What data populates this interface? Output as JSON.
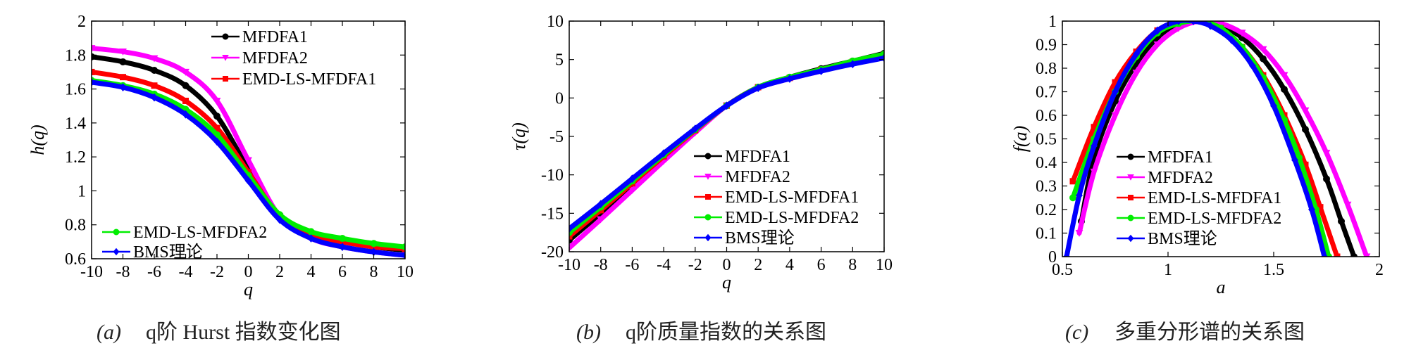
{
  "chart_data": [
    {
      "type": "line",
      "panel": "a",
      "xlabel": "q",
      "ylabel": "h(q)",
      "xlim": [
        -10,
        10
      ],
      "ylim": [
        0.6,
        2
      ],
      "xticks": [
        -10,
        -8,
        -6,
        -4,
        -2,
        0,
        2,
        4,
        6,
        8,
        10
      ],
      "xtick_labels": [
        "-10",
        "-8",
        "-6",
        "-4",
        "-2",
        "0",
        "2",
        "4",
        "6",
        "8",
        "10"
      ],
      "yticks": [
        0.6,
        0.8,
        1,
        1.2,
        1.4,
        1.6,
        1.8,
        2
      ],
      "ytick_labels": [
        "0.6",
        "0.8",
        "1",
        "1.2",
        "1.4",
        "1.6",
        "1.8",
        "2"
      ],
      "x": [
        -10,
        -8,
        -6,
        -4,
        -2,
        0,
        2,
        4,
        6,
        8,
        10
      ],
      "series": [
        {
          "name": "MFDFA1",
          "color": "#000000",
          "marker": "circle",
          "values": [
            1.79,
            1.76,
            1.71,
            1.62,
            1.44,
            1.13,
            0.85,
            0.74,
            0.7,
            0.67,
            0.65
          ]
        },
        {
          "name": "MFDFA2",
          "color": "#ff00ff",
          "marker": "triangle-down",
          "values": [
            1.84,
            1.82,
            1.78,
            1.7,
            1.53,
            1.18,
            0.85,
            0.72,
            0.67,
            0.64,
            0.62
          ]
        },
        {
          "name": "EMD-LS-MFDFA1",
          "color": "#ff0000",
          "marker": "square",
          "values": [
            1.7,
            1.67,
            1.62,
            1.53,
            1.37,
            1.11,
            0.85,
            0.74,
            0.7,
            0.67,
            0.66
          ]
        },
        {
          "name": "EMD-LS-MFDFA2",
          "color": "#00ee00",
          "marker": "circle",
          "values": [
            1.65,
            1.62,
            1.57,
            1.48,
            1.33,
            1.09,
            0.86,
            0.76,
            0.72,
            0.69,
            0.67
          ]
        },
        {
          "name": "BMS理论",
          "color": "#0000ff",
          "marker": "diamond",
          "values": [
            1.64,
            1.61,
            1.55,
            1.45,
            1.29,
            1.06,
            0.83,
            0.72,
            0.67,
            0.64,
            0.62
          ]
        }
      ],
      "legend_upper": [
        "MFDFA1",
        "MFDFA2",
        "EMD-LS-MFDFA1"
      ],
      "legend_lower": [
        "EMD-LS-MFDFA2",
        "BMS理论"
      ],
      "caption_tag": "(a)",
      "caption": "q阶 Hurst 指数变化图"
    },
    {
      "type": "line",
      "panel": "b",
      "xlabel": "q",
      "ylabel": "τ(q)",
      "xlim": [
        -10,
        10
      ],
      "ylim": [
        -20,
        10
      ],
      "xticks": [
        -10,
        -8,
        -6,
        -4,
        -2,
        0,
        2,
        4,
        6,
        8,
        10
      ],
      "xtick_labels": [
        "-10",
        "-8",
        "-6",
        "-4",
        "-2",
        "0",
        "2",
        "4",
        "6",
        "8",
        "10"
      ],
      "yticks": [
        -20,
        -15,
        -10,
        -5,
        0,
        5,
        10
      ],
      "ytick_labels": [
        "-20",
        "-15",
        "-10",
        "-5",
        "0",
        "5",
        "10"
      ],
      "x": [
        -10,
        -8,
        -6,
        -4,
        -2,
        0,
        2,
        4,
        6,
        8,
        10
      ],
      "series": [
        {
          "name": "MFDFA1",
          "color": "#000000",
          "marker": "circle",
          "values": [
            -18.5,
            -15.0,
            -11.4,
            -7.8,
            -4.3,
            -1.0,
            1.4,
            2.7,
            3.8,
            4.8,
            5.8
          ]
        },
        {
          "name": "MFDFA2",
          "color": "#ff00ff",
          "marker": "triangle-down",
          "values": [
            -19.5,
            -15.8,
            -12.0,
            -8.2,
            -4.5,
            -1.0,
            1.3,
            2.5,
            3.5,
            4.5,
            5.3
          ]
        },
        {
          "name": "EMD-LS-MFDFA1",
          "color": "#ff0000",
          "marker": "square",
          "values": [
            -18.0,
            -14.6,
            -11.1,
            -7.6,
            -4.2,
            -1.0,
            1.4,
            2.6,
            3.7,
            4.7,
            5.6
          ]
        },
        {
          "name": "EMD-LS-MFDFA2",
          "color": "#00ee00",
          "marker": "circle",
          "values": [
            -17.5,
            -14.2,
            -10.8,
            -7.4,
            -4.1,
            -1.0,
            1.4,
            2.7,
            3.7,
            4.8,
            5.7
          ]
        },
        {
          "name": "BMS理论",
          "color": "#0000ff",
          "marker": "diamond",
          "values": [
            -17.0,
            -13.8,
            -10.5,
            -7.2,
            -4.0,
            -1.0,
            1.3,
            2.5,
            3.5,
            4.4,
            5.2
          ]
        }
      ],
      "legend": [
        "MFDFA1",
        "MFDFA2",
        "EMD-LS-MFDFA1",
        "EMD-LS-MFDFA2",
        "BMS理论"
      ],
      "caption_tag": "(b)",
      "caption": "q阶质量指数的关系图"
    },
    {
      "type": "line",
      "panel": "c",
      "xlabel": "a",
      "ylabel": "f(a)",
      "xlim": [
        0.5,
        2
      ],
      "ylim": [
        0,
        1
      ],
      "xticks": [
        0.5,
        1,
        1.5,
        2
      ],
      "xtick_labels": [
        "0.5",
        "1",
        "1.5",
        "2"
      ],
      "yticks": [
        0,
        0.1,
        0.2,
        0.3,
        0.4,
        0.5,
        0.6,
        0.7,
        0.8,
        0.9,
        1
      ],
      "ytick_labels": [
        "0",
        "0.1",
        "0.2",
        "0.3",
        "0.4",
        "0.5",
        "0.6",
        "0.7",
        "0.8",
        "0.9",
        "1"
      ],
      "series": [
        {
          "name": "MFDFA1",
          "color": "#000000",
          "marker": "circle",
          "x": [
            0.59,
            0.65,
            0.75,
            0.85,
            0.95,
            1.05,
            1.15,
            1.25,
            1.35,
            1.45,
            1.55,
            1.65,
            1.75,
            1.82,
            1.88
          ],
          "values": [
            0.15,
            0.42,
            0.66,
            0.82,
            0.93,
            0.99,
            1.0,
            0.98,
            0.93,
            0.84,
            0.71,
            0.54,
            0.33,
            0.15,
            0.0
          ]
        },
        {
          "name": "MFDFA2",
          "color": "#ff00ff",
          "marker": "triangle-down",
          "x": [
            0.58,
            0.65,
            0.75,
            0.85,
            0.95,
            1.05,
            1.15,
            1.25,
            1.35,
            1.45,
            1.55,
            1.65,
            1.75,
            1.85,
            1.94
          ],
          "values": [
            0.1,
            0.36,
            0.6,
            0.78,
            0.9,
            0.97,
            1.0,
            0.99,
            0.95,
            0.88,
            0.77,
            0.62,
            0.44,
            0.22,
            0.0
          ]
        },
        {
          "name": "EMD-LS-MFDFA1",
          "color": "#ff0000",
          "marker": "square",
          "x": [
            0.55,
            0.65,
            0.75,
            0.85,
            0.95,
            1.05,
            1.15,
            1.25,
            1.35,
            1.45,
            1.55,
            1.65,
            1.72,
            1.8
          ],
          "values": [
            0.32,
            0.55,
            0.74,
            0.87,
            0.96,
            1.0,
            1.0,
            0.97,
            0.89,
            0.77,
            0.6,
            0.39,
            0.21,
            0.0
          ]
        },
        {
          "name": "EMD-LS-MFDFA2",
          "color": "#00ee00",
          "marker": "circle",
          "x": [
            0.55,
            0.65,
            0.75,
            0.85,
            0.95,
            1.05,
            1.15,
            1.25,
            1.35,
            1.45,
            1.55,
            1.62,
            1.7,
            1.76
          ],
          "values": [
            0.25,
            0.5,
            0.7,
            0.85,
            0.95,
            0.99,
            1.0,
            0.97,
            0.89,
            0.76,
            0.58,
            0.42,
            0.2,
            0.0
          ]
        },
        {
          "name": "BMS理论",
          "color": "#0000ff",
          "marker": "diamond",
          "x": [
            0.52,
            0.58,
            0.65,
            0.75,
            0.85,
            0.95,
            1.05,
            1.12,
            1.2,
            1.3,
            1.4,
            1.5,
            1.6,
            1.68,
            1.74
          ],
          "values": [
            0.0,
            0.26,
            0.47,
            0.7,
            0.86,
            0.96,
            1.0,
            1.0,
            0.98,
            0.92,
            0.81,
            0.64,
            0.41,
            0.2,
            0.0
          ]
        }
      ],
      "legend": [
        "MFDFA1",
        "MFDFA2",
        "EMD-LS-MFDFA1",
        "EMD-LS-MFDFA2",
        "BMS理论"
      ],
      "caption_tag": "(c)",
      "caption": "多重分形谱的关系图"
    }
  ]
}
